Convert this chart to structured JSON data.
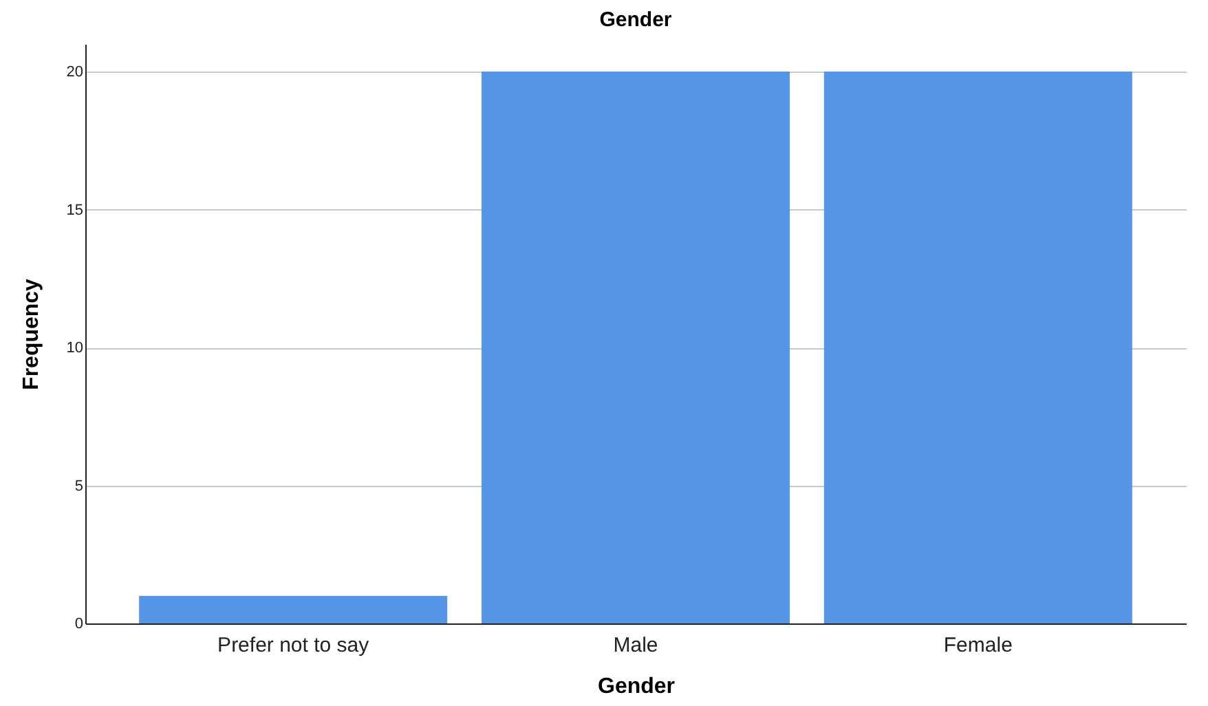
{
  "chart_data": {
    "type": "bar",
    "title": "Gender",
    "xlabel": "Gender",
    "ylabel": "Frequency",
    "categories": [
      "Prefer not to say",
      "Male",
      "Female"
    ],
    "values": [
      1,
      20,
      20
    ],
    "color": "#5596e6",
    "ylim": [
      0,
      21
    ],
    "yticks": [
      0,
      5,
      10,
      15,
      20
    ],
    "grid": "y"
  }
}
